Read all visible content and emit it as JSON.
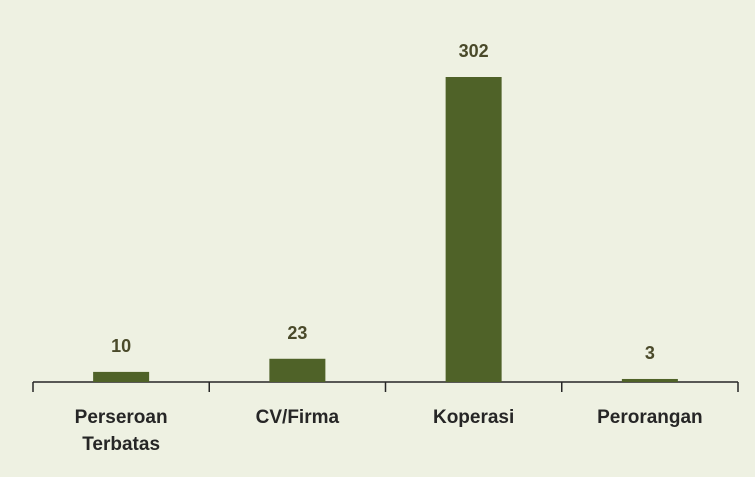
{
  "chart_data": {
    "type": "bar",
    "categories": [
      "Perseroan Terbatas",
      "CV/Firma",
      "Koperasi",
      "Perorangan"
    ],
    "values": [
      10,
      23,
      302,
      3
    ],
    "color": "#4f6228"
  }
}
